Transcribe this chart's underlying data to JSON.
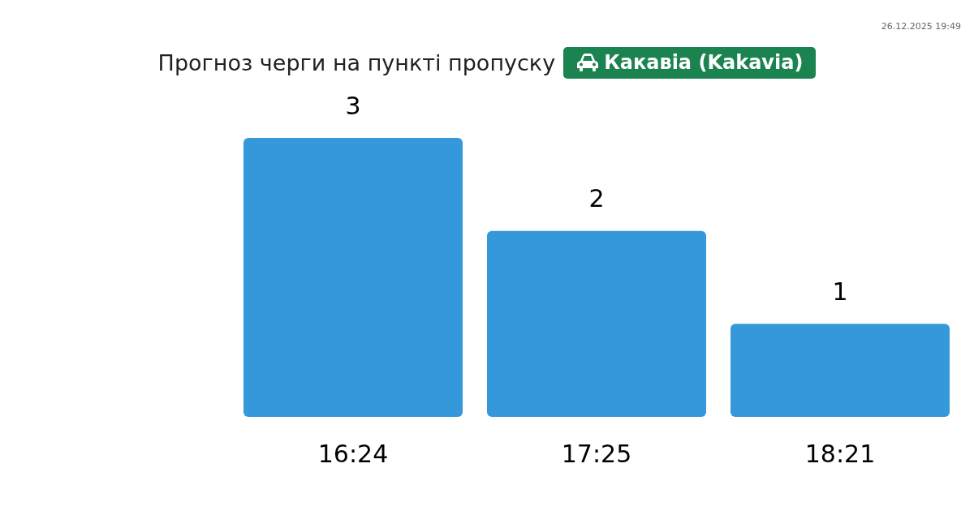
{
  "chart_data": {
    "type": "bar",
    "title": "Прогноз черги на пункті пропуску",
    "subtitle": "Какавіа (Kakavia)",
    "categories": [
      "16:24",
      "17:25",
      "18:21"
    ],
    "values": [
      3,
      2,
      1
    ],
    "color": "#3498db",
    "data_labels": true,
    "grid": false,
    "legend": false,
    "annotations": [
      "26.12.2025 19:49"
    ]
  }
}
